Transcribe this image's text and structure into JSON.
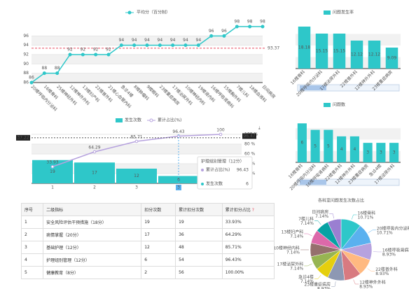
{
  "chart_data": [
    {
      "type": "line",
      "legend": "平均分（百分制）",
      "color": "#2ec7c9",
      "categories": [
        "20楼呼吸内分泌科",
        "16楼骨科",
        "25楼神经外科",
        "12楼神外外科",
        "13楼妇产科",
        "22楼普外科",
        "21楼心血管内科",
        "急诊4楼",
        "8楼肿瘤科",
        "9楼眼科",
        "23楼重症病房",
        "17楼泌尿外科",
        "10楼神经内科",
        "19楼肾内科",
        "16楼呼吸肾病科",
        "15楼胸外科",
        "7楼儿科",
        "18楼血液科",
        "日间病房"
      ],
      "values": [
        86,
        88,
        88,
        92,
        92,
        92,
        92,
        94,
        94,
        94,
        94,
        94,
        94,
        94,
        96,
        96,
        98,
        98,
        98
      ],
      "ylim": [
        86,
        98
      ],
      "yticks": [
        86,
        88,
        90,
        92,
        94,
        96
      ],
      "mark_line": 93.37,
      "mark_line_color": "#e84a5f"
    },
    {
      "type": "bar",
      "legend": "问题发生率",
      "color": "#2ec7c9",
      "categories": [
        "16楼骨科",
        "20楼呼吸内分泌科",
        "17楼泌尿外科",
        "22楼普外科",
        "12楼神外外科",
        "23楼重症病房"
      ],
      "values": [
        18.18,
        15.15,
        15.15,
        12.12,
        12.12,
        9.09
      ],
      "ylim": [
        0,
        20
      ]
    },
    {
      "type": "bar",
      "legend": "问题数",
      "color": "#2ec7c9",
      "categories": [
        "16楼骨科",
        "20楼呼吸内分泌科",
        "16楼呼吸肾病科",
        "22楼普外科",
        "12楼神外外科",
        "23楼重症病房",
        "急诊4楼",
        "17楼泌尿外科"
      ],
      "values": [
        6,
        5,
        5,
        4,
        4,
        3,
        3,
        3
      ],
      "ylim": [
        0,
        7
      ]
    },
    {
      "type": "pareto",
      "categories": [
        "1",
        "2",
        "3",
        "4",
        "5"
      ],
      "series": [
        {
          "name": "发生次数",
          "color": "#2ec7c9",
          "values": [
            19,
            17,
            12,
            6,
            2
          ]
        },
        {
          "name": "累计占比(%)",
          "color": "#b6a2de",
          "axis": "y2",
          "values": [
            33.93,
            64.29,
            85.71,
            96.43,
            100
          ]
        }
      ],
      "ylim": [
        0,
        40
      ],
      "y2lim": [
        0,
        100
      ],
      "y2ticks": [
        {
          "value": 0,
          "label": "0 %"
        },
        {
          "value": 20,
          "label": "20 %"
        },
        {
          "value": 40,
          "label": "40 %"
        },
        {
          "value": 60,
          "label": "60 %"
        },
        {
          "value": 80,
          "label": "80 %"
        },
        {
          "value": 100,
          "label": "100 %"
        }
      ],
      "axis_pointer": {
        "y": 37.22,
        "y2": 96.47,
        "category": 3
      },
      "tooltip": {
        "title": "护理组别管理（12分）",
        "rows": [
          {
            "name": "累计占比(%)",
            "value": 96.43
          },
          {
            "name": "发生次数",
            "value": 6
          }
        ]
      }
    },
    {
      "type": "pie",
      "title": "各科室问题发生次数占比",
      "categories": [
        "16楼骨科",
        "20楼呼吸内分泌科",
        "16楼呼吸肾病科",
        "22楼普外科",
        "12楼神外外科",
        "23楼重症病房",
        "急诊4楼",
        "17楼泌尿外科",
        "10楼神经内科",
        "13楼妇产科",
        "7楼儿科",
        "日间病房"
      ],
      "values": [
        10.71,
        10.71,
        8.93,
        8.93,
        8.93,
        8.93,
        7.14,
        7.14,
        7.14,
        7.14,
        7.14,
        7.14
      ],
      "value_labels": [
        "10.71%",
        "10.71%",
        "8.93%",
        "8.93%",
        "8.93%",
        "8.93%",
        "7.14%",
        "7.14%",
        "7.14%",
        "7.14%",
        "7.14%",
        "7.14%"
      ],
      "colors": [
        "#2ec7c9",
        "#5ab1ef",
        "#b6a2de",
        "#ffb980",
        "#d87a80",
        "#8d98b3",
        "#e5cf0d",
        "#97b552",
        "#95706d",
        "#dc69aa",
        "#07a2a4",
        "#9a7fd1"
      ]
    }
  ],
  "table": {
    "header": [
      "序号",
      "二级指标",
      "扣分次数",
      "累计扣分次数",
      "累计扣分占比"
    ],
    "rows": [
      [
        "1",
        "安全风险评估干预措施（18分）",
        "19",
        "19",
        "33.93%"
      ],
      [
        "2",
        "病情掌握（20分）",
        "17",
        "36",
        "64.29%"
      ],
      [
        "3",
        "基础护理（12分）",
        "12",
        "48",
        "85.71%"
      ],
      [
        "4",
        "护理组别管理（12分）",
        "6",
        "54",
        "96.43%"
      ],
      [
        "5",
        "健康教育（8分）",
        "2",
        "56",
        "100.00%"
      ]
    ]
  }
}
